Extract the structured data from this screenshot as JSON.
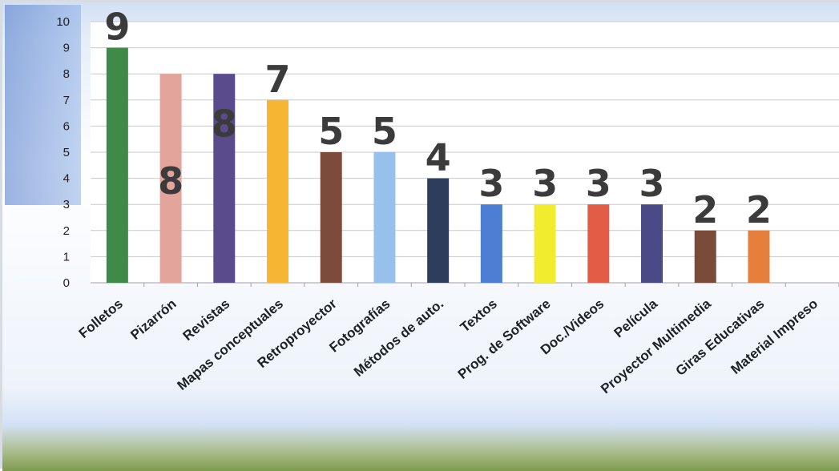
{
  "chart_data": {
    "type": "bar",
    "categories": [
      "Folletos",
      "Pizarrón",
      "Revistas",
      "Mapas conceptuales",
      "Retroproyector",
      "Fotografías",
      "Métodos de auto.",
      "Textos",
      "Prog. de Software",
      "Doc./Videos",
      "Película",
      "Proyector Multimedia",
      "Giras Educativas",
      "Material Impreso"
    ],
    "values": [
      9,
      8,
      8,
      7,
      5,
      5,
      4,
      3,
      3,
      3,
      3,
      2,
      2,
      0
    ],
    "data_labels": [
      "9",
      "8",
      "8",
      "7",
      "5",
      "5",
      "4",
      "3",
      "3",
      "3",
      "3",
      "2",
      "2",
      ""
    ],
    "colors": [
      "#3f8a48",
      "#e3a49b",
      "#5a4c8c",
      "#f6b533",
      "#7d4b3c",
      "#97c1ec",
      "#2f3d5c",
      "#4c7fd4",
      "#f2ec2f",
      "#e25c46",
      "#4a4a86",
      "#7b4b3a",
      "#e67e3c",
      "#cccccc"
    ],
    "y_ticks": [
      "0",
      "1",
      "2",
      "3",
      "4",
      "5",
      "6",
      "7",
      "8",
      "9",
      "10"
    ],
    "ylim": [
      0,
      10
    ],
    "grid": true,
    "legend": "none",
    "title": "",
    "xlabel": "",
    "ylabel": "",
    "background": {
      "top": "#d2e0f4",
      "middle": "#ffffff",
      "bottom": "#7e9a4c"
    }
  }
}
